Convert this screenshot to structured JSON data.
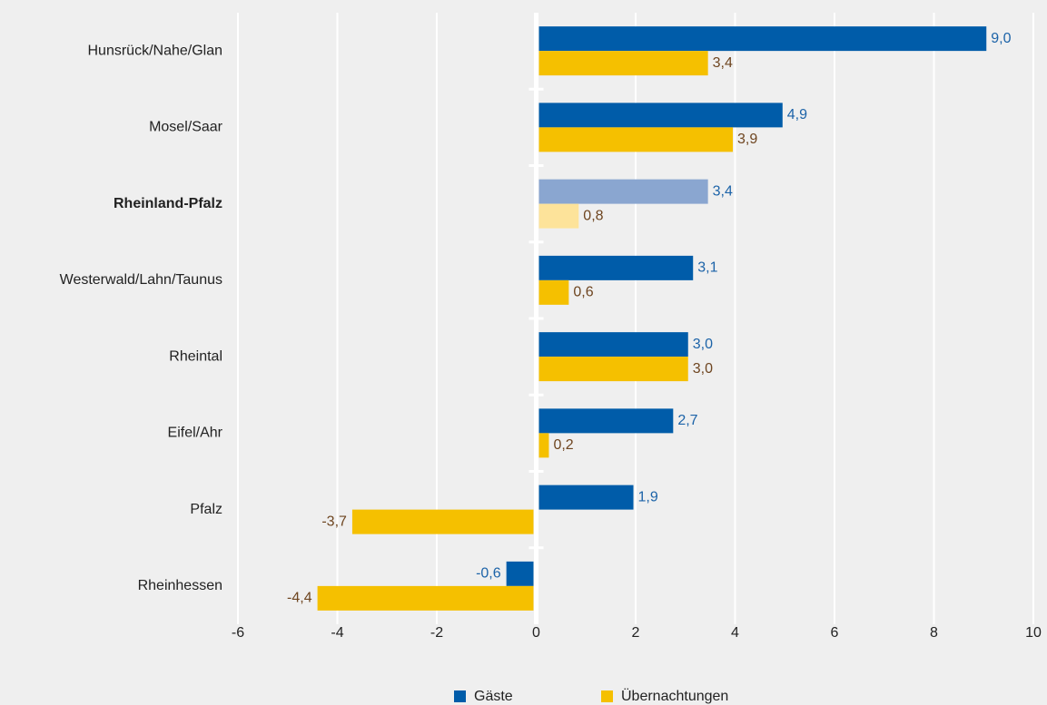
{
  "chart_data": {
    "type": "barh",
    "categories": [
      "Hunsrück/Nahe/Glan",
      "Mosel/Saar",
      "Rheinland-Pfalz",
      "Westerwald/Lahn/Taunus",
      "Rheintal",
      "Eifel/Ahr",
      "Pfalz",
      "Rheinhessen"
    ],
    "highlight": 2,
    "series": [
      {
        "name": "Gäste",
        "color": "#005ca9",
        "highlight_color": "#8aa6d0",
        "label_color": "#1c63a8",
        "values": [
          9.0,
          4.9,
          3.4,
          3.1,
          3.0,
          2.7,
          1.9,
          -0.6
        ],
        "value_labels": [
          "9,0",
          "4,9",
          "3,4",
          "3,1",
          "3,0",
          "2,7",
          "1,9",
          "-0,6"
        ]
      },
      {
        "name": "Übernachtungen",
        "color": "#f5c000",
        "highlight_color": "#fde39a",
        "label_color": "#6e4520",
        "values": [
          3.4,
          3.9,
          0.8,
          0.6,
          3.0,
          0.2,
          -3.7,
          -4.4
        ],
        "value_labels": [
          "3,4",
          "3,9",
          "0,8",
          "0,6",
          "3,0",
          "0,2",
          "-3,7",
          "-4,4"
        ]
      }
    ],
    "xlim": [
      -6,
      10
    ],
    "xticks": [
      -6,
      -4,
      -2,
      0,
      2,
      4,
      6,
      8,
      10
    ],
    "grid": true
  }
}
